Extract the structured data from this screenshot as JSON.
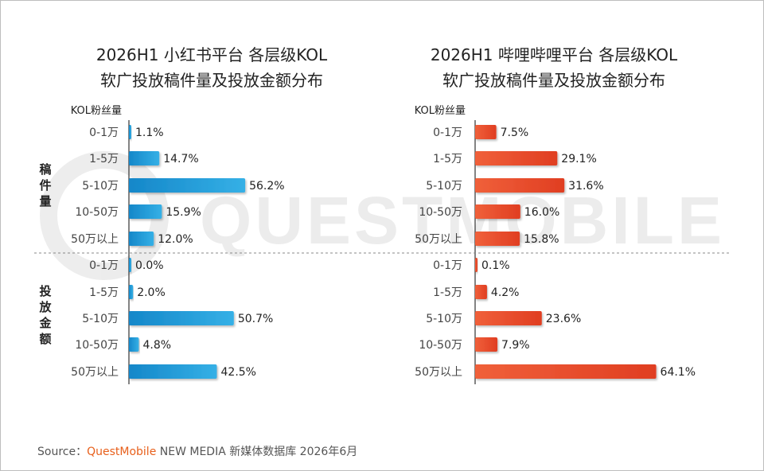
{
  "watermark": "QUESTMOBILE",
  "groups": [
    {
      "label": "稿件量",
      "chars": [
        "稿",
        "件",
        "量"
      ]
    },
    {
      "label": "投放金额",
      "chars": [
        "投",
        "放",
        "金",
        "额"
      ]
    }
  ],
  "chart_data": [
    {
      "type": "bar",
      "orientation": "horizontal",
      "title_line1": "2026H1 小红书平台 各层级KOL",
      "title_line2": "软广投放稿件量及投放金额分布",
      "ylabel": "KOL粉丝量",
      "color": "#1f9ad6",
      "series": [
        {
          "name": "稿件量",
          "categories": [
            "0-1万",
            "1-5万",
            "5-10万",
            "10-50万",
            "50万以上"
          ],
          "values": [
            1.1,
            14.7,
            56.2,
            15.9,
            12.0
          ],
          "labels": [
            "1.1%",
            "14.7%",
            "56.2%",
            "15.9%",
            "12.0%"
          ]
        },
        {
          "name": "投放金额",
          "categories": [
            "0-1万",
            "1-5万",
            "5-10万",
            "10-50万",
            "50万以上"
          ],
          "values": [
            0.0,
            2.0,
            50.7,
            4.8,
            42.5
          ],
          "labels": [
            "0.0%",
            "2.0%",
            "50.7%",
            "4.8%",
            "42.5%"
          ]
        }
      ]
    },
    {
      "type": "bar",
      "orientation": "horizontal",
      "title_line1": "2026H1 哔哩哔哩平台 各层级KOL",
      "title_line2": "软广投放稿件量及投放金额分布",
      "ylabel": "KOL粉丝量",
      "color": "#e8492a",
      "series": [
        {
          "name": "稿件量",
          "categories": [
            "0-1万",
            "1-5万",
            "5-10万",
            "10-50万",
            "50万以上"
          ],
          "values": [
            7.5,
            29.1,
            31.6,
            16.0,
            15.8
          ],
          "labels": [
            "7.5%",
            "29.1%",
            "31.6%",
            "16.0%",
            "15.8%"
          ]
        },
        {
          "name": "投放金额",
          "categories": [
            "0-1万",
            "1-5万",
            "5-10万",
            "10-50万",
            "50万以上"
          ],
          "values": [
            0.1,
            4.2,
            23.6,
            7.9,
            64.1
          ],
          "labels": [
            "0.1%",
            "4.2%",
            "23.6%",
            "7.9%",
            "64.1%"
          ]
        }
      ]
    }
  ],
  "source": {
    "prefix": "Source：",
    "brand": "QuestMobile",
    "suffix": " NEW MEDIA 新媒体数据库 2026年6月"
  }
}
